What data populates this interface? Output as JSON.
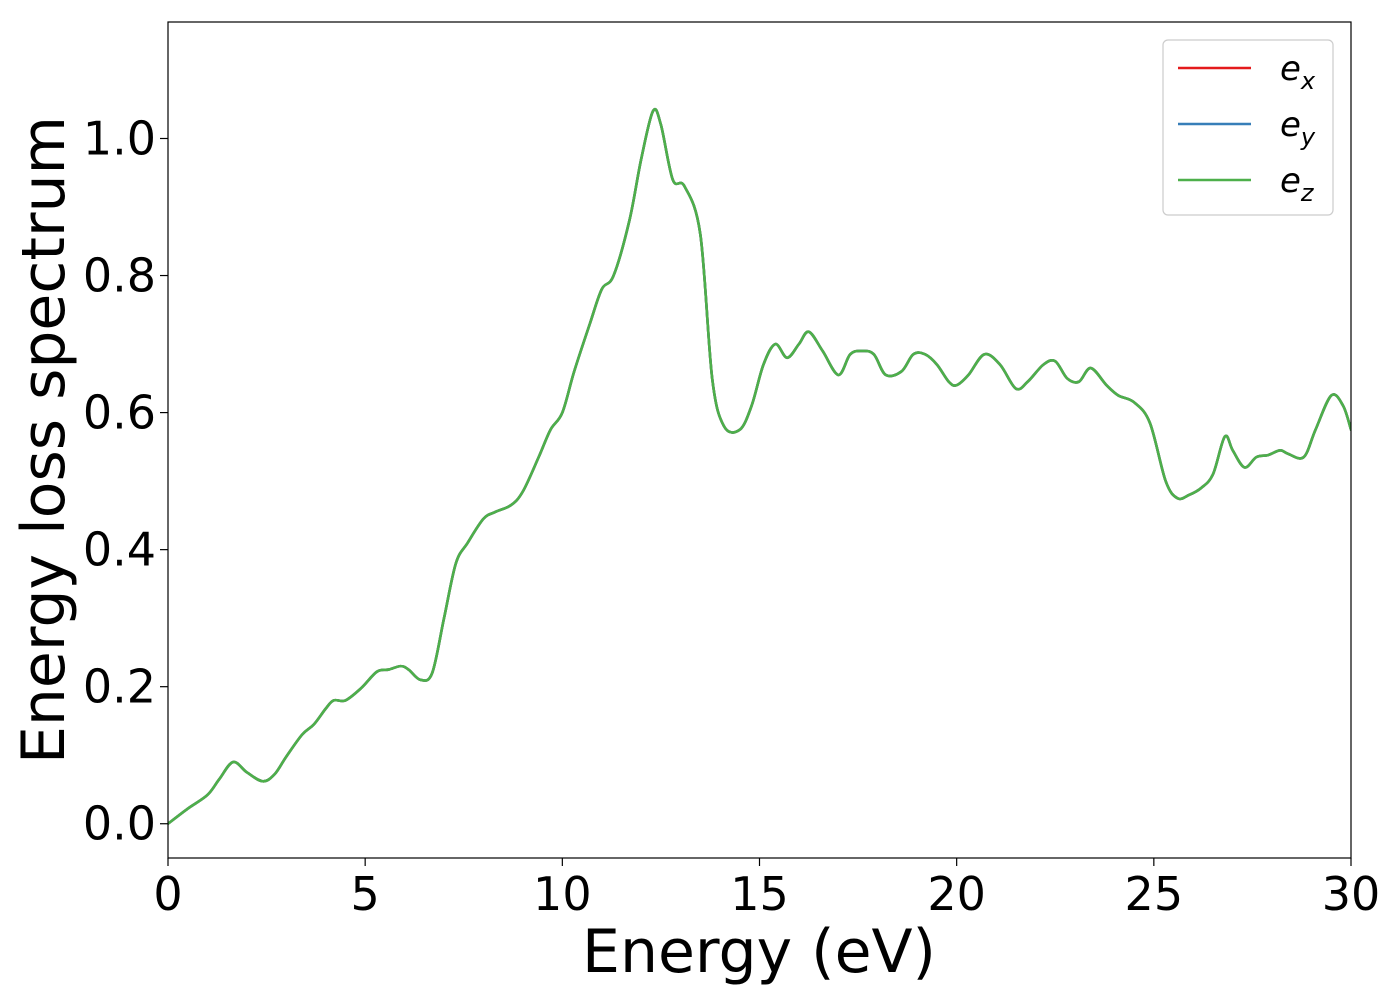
{
  "chart_data": {
    "type": "line",
    "title": "",
    "xlabel": "Energy (eV)",
    "ylabel": "Energy loss spectrum",
    "xlim": [
      0,
      30
    ],
    "ylim": [
      -0.05,
      1.17
    ],
    "xticks": [
      0,
      5,
      10,
      15,
      20,
      25,
      30
    ],
    "xtick_labels": [
      "0",
      "5",
      "10",
      "15",
      "20",
      "25",
      "30"
    ],
    "yticks": [
      0.0,
      0.2,
      0.4,
      0.6,
      0.8,
      1.0
    ],
    "ytick_labels": [
      "0.0",
      "0.2",
      "0.4",
      "0.6",
      "0.8",
      "1.0"
    ],
    "grid": false,
    "legend": {
      "position": "top-right",
      "entries": [
        {
          "base": "e",
          "sub": "x",
          "color": "#e41a1c"
        },
        {
          "base": "e",
          "sub": "y",
          "color": "#377eb8"
        },
        {
          "base": "e",
          "sub": "z",
          "color": "#4daf4a"
        }
      ]
    },
    "x": [
      0,
      0.5,
      1.0,
      1.3,
      1.65,
      2.0,
      2.4,
      2.7,
      3.0,
      3.4,
      3.7,
      4.0,
      4.2,
      4.5,
      4.9,
      5.3,
      5.6,
      5.9,
      6.1,
      6.4,
      6.7,
      7.0,
      7.3,
      7.6,
      8.0,
      8.3,
      8.7,
      9.0,
      9.4,
      9.7,
      10.0,
      10.3,
      10.7,
      11.0,
      11.3,
      11.7,
      12.0,
      12.3,
      12.5,
      12.8,
      13.1,
      13.5,
      13.8,
      14.1,
      14.5,
      14.8,
      15.1,
      15.4,
      15.7,
      16.0,
      16.25,
      16.6,
      17.0,
      17.3,
      17.6,
      17.9,
      18.2,
      18.6,
      18.9,
      19.2,
      19.5,
      19.8,
      20.0,
      20.3,
      20.7,
      21.1,
      21.5,
      21.8,
      22.2,
      22.5,
      22.8,
      23.1,
      23.4,
      23.8,
      24.1,
      24.5,
      24.9,
      25.3,
      25.6,
      25.9,
      26.2,
      26.5,
      26.8,
      27.0,
      27.3,
      27.6,
      27.9,
      28.2,
      28.4,
      28.8,
      29.1,
      29.5,
      29.8,
      30.0
    ],
    "series": [
      {
        "name": "e_x",
        "color": "#e41a1c",
        "values": [
          0.0,
          0.022,
          0.042,
          0.065,
          0.09,
          0.075,
          0.062,
          0.072,
          0.098,
          0.13,
          0.145,
          0.168,
          0.18,
          0.18,
          0.198,
          0.222,
          0.225,
          0.23,
          0.225,
          0.21,
          0.22,
          0.3,
          0.38,
          0.41,
          0.445,
          0.455,
          0.465,
          0.485,
          0.535,
          0.575,
          0.6,
          0.66,
          0.73,
          0.78,
          0.8,
          0.88,
          0.97,
          1.04,
          1.02,
          0.94,
          0.93,
          0.86,
          0.65,
          0.58,
          0.575,
          0.61,
          0.67,
          0.7,
          0.68,
          0.7,
          0.718,
          0.69,
          0.655,
          0.685,
          0.69,
          0.685,
          0.655,
          0.66,
          0.685,
          0.685,
          0.67,
          0.645,
          0.64,
          0.655,
          0.685,
          0.67,
          0.635,
          0.645,
          0.67,
          0.675,
          0.65,
          0.645,
          0.665,
          0.64,
          0.625,
          0.615,
          0.585,
          0.5,
          0.475,
          0.48,
          0.49,
          0.51,
          0.565,
          0.545,
          0.52,
          0.535,
          0.538,
          0.545,
          0.54,
          0.535,
          0.575,
          0.625,
          0.61,
          0.575
        ]
      },
      {
        "name": "e_y",
        "color": "#377eb8",
        "values": [
          0.0,
          0.022,
          0.042,
          0.065,
          0.09,
          0.075,
          0.062,
          0.072,
          0.098,
          0.13,
          0.145,
          0.168,
          0.18,
          0.18,
          0.198,
          0.222,
          0.225,
          0.23,
          0.225,
          0.21,
          0.22,
          0.3,
          0.38,
          0.41,
          0.445,
          0.455,
          0.465,
          0.485,
          0.535,
          0.575,
          0.6,
          0.66,
          0.73,
          0.78,
          0.8,
          0.88,
          0.97,
          1.04,
          1.02,
          0.94,
          0.93,
          0.86,
          0.65,
          0.58,
          0.575,
          0.61,
          0.67,
          0.7,
          0.68,
          0.7,
          0.718,
          0.69,
          0.655,
          0.685,
          0.69,
          0.685,
          0.655,
          0.66,
          0.685,
          0.685,
          0.67,
          0.645,
          0.64,
          0.655,
          0.685,
          0.67,
          0.635,
          0.645,
          0.67,
          0.675,
          0.65,
          0.645,
          0.665,
          0.64,
          0.625,
          0.615,
          0.585,
          0.5,
          0.475,
          0.48,
          0.49,
          0.51,
          0.565,
          0.545,
          0.52,
          0.535,
          0.538,
          0.545,
          0.54,
          0.535,
          0.575,
          0.625,
          0.61,
          0.575
        ]
      },
      {
        "name": "e_z",
        "color": "#4daf4a",
        "values": [
          0.0,
          0.022,
          0.042,
          0.065,
          0.09,
          0.075,
          0.062,
          0.072,
          0.098,
          0.13,
          0.145,
          0.168,
          0.18,
          0.18,
          0.198,
          0.222,
          0.225,
          0.23,
          0.225,
          0.21,
          0.22,
          0.3,
          0.38,
          0.41,
          0.445,
          0.455,
          0.465,
          0.485,
          0.535,
          0.575,
          0.6,
          0.66,
          0.73,
          0.78,
          0.8,
          0.88,
          0.97,
          1.04,
          1.02,
          0.94,
          0.93,
          0.86,
          0.65,
          0.58,
          0.575,
          0.61,
          0.67,
          0.7,
          0.68,
          0.7,
          0.718,
          0.69,
          0.655,
          0.685,
          0.69,
          0.685,
          0.655,
          0.66,
          0.685,
          0.685,
          0.67,
          0.645,
          0.64,
          0.655,
          0.685,
          0.67,
          0.635,
          0.645,
          0.67,
          0.675,
          0.65,
          0.645,
          0.665,
          0.64,
          0.625,
          0.615,
          0.585,
          0.5,
          0.475,
          0.48,
          0.49,
          0.51,
          0.565,
          0.545,
          0.52,
          0.535,
          0.538,
          0.545,
          0.54,
          0.535,
          0.575,
          0.625,
          0.61,
          0.575
        ]
      }
    ]
  }
}
